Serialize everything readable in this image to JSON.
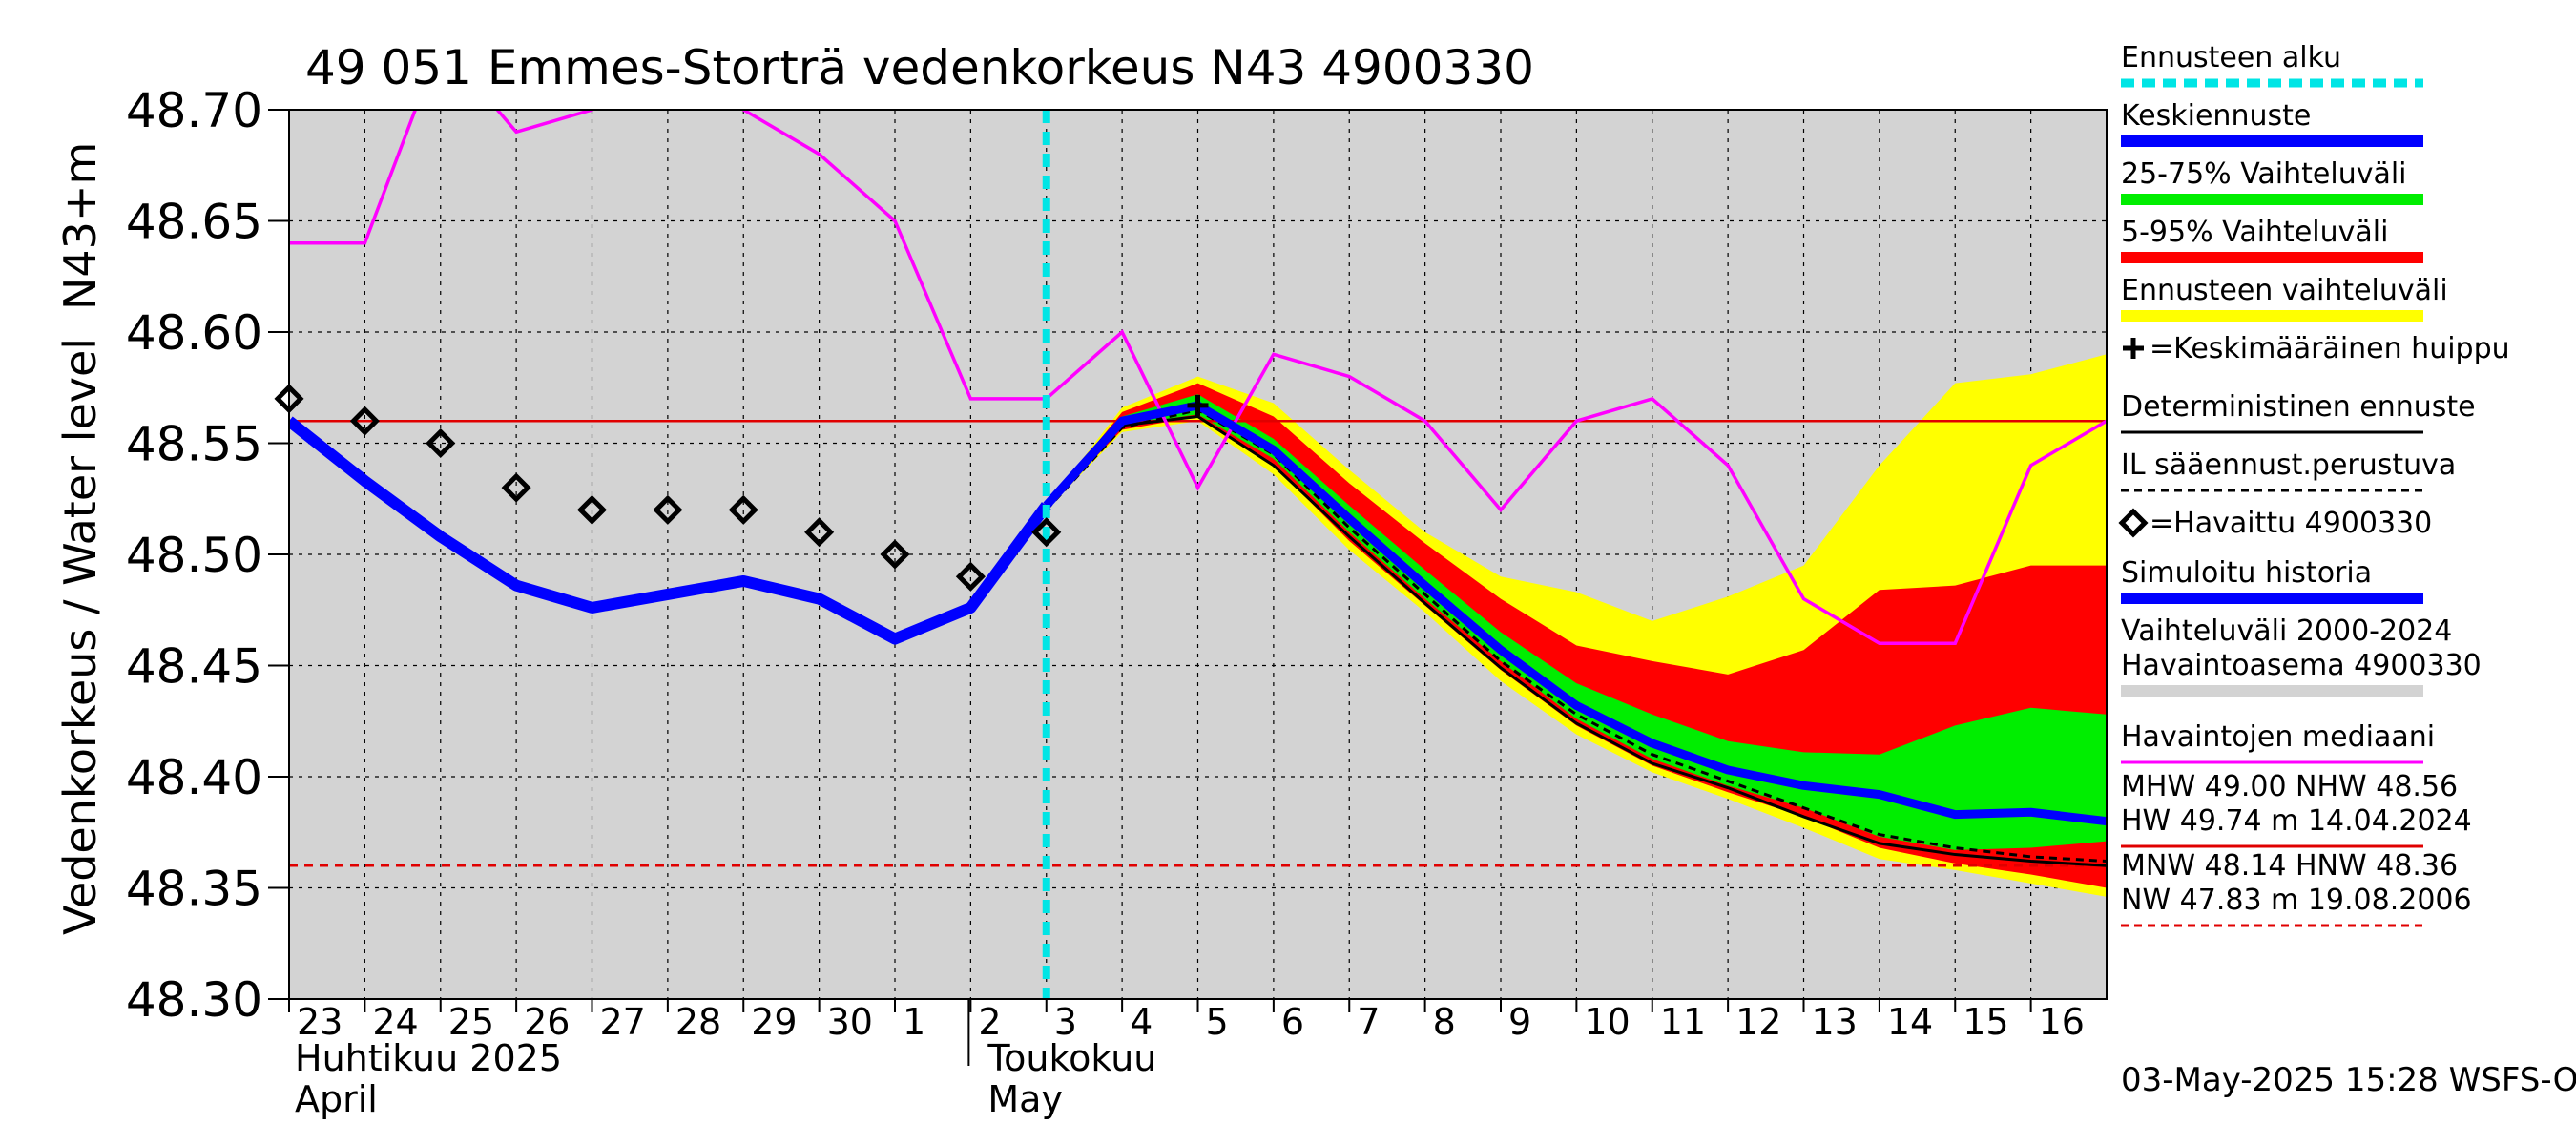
{
  "chart_data": {
    "type": "line",
    "title": "49 051 Emmes-Storträ vedenkorkeus N43 4900330",
    "ylabel": "Vedenkorkeus / Water level",
    "ylabel_unit": "N43+m",
    "ylim": [
      48.3,
      48.7
    ],
    "yticks": [
      "48.30",
      "48.35",
      "48.40",
      "48.45",
      "48.50",
      "48.55",
      "48.60",
      "48.65",
      "48.70"
    ],
    "x_day_range": [
      0,
      24
    ],
    "x_tick_labels": [
      "23",
      "24",
      "25",
      "26",
      "27",
      "28",
      "29",
      "30",
      "1",
      "2",
      "3",
      "4",
      "5",
      "6",
      "7",
      "8",
      "9",
      "10",
      "11",
      "12",
      "13",
      "14",
      "15",
      "16"
    ],
    "month_labels": [
      {
        "fi": "Huhtikuu  2025",
        "en": "April",
        "day": 0
      },
      {
        "fi": "Toukokuu",
        "en": "May",
        "day": 9
      }
    ],
    "forecast_start_day": 10,
    "reference_lines": {
      "nhw": 48.56,
      "hnw": 48.36
    },
    "timestamp": "03-May-2025 15:28 WSFS-O",
    "colors": {
      "forecast_start": "#00e5e5",
      "mean_forecast": "#0000ff",
      "band_25_75": "#00ee00",
      "band_5_95": "#ff0000",
      "band_ensemble": "#ffff00",
      "median": "#ff00ff",
      "historical_range": "#d3d3d3",
      "reference": "#e00000"
    },
    "series": {
      "simulated_history": {
        "name": "Simuloitu historia",
        "x": [
          0,
          1,
          2,
          3,
          4,
          5,
          6,
          7,
          8,
          9,
          10
        ],
        "y": [
          48.56,
          48.533,
          48.508,
          48.486,
          48.476,
          48.482,
          48.488,
          48.48,
          48.462,
          48.476,
          48.522
        ]
      },
      "observed": {
        "name": "=Havaittu 4900330",
        "x": [
          0,
          1,
          2,
          3,
          4,
          5,
          6,
          7,
          8,
          9,
          10
        ],
        "y": [
          48.57,
          48.56,
          48.55,
          48.53,
          48.52,
          48.52,
          48.52,
          48.51,
          48.5,
          48.49,
          48.51
        ]
      },
      "median": {
        "name": "Havaintojen mediaani",
        "x": [
          0,
          1,
          2,
          3,
          4,
          5,
          6,
          7,
          8,
          9,
          10,
          11,
          12,
          13,
          14,
          15,
          16,
          17,
          18,
          19,
          20,
          21,
          22,
          23,
          24
        ],
        "y": [
          48.64,
          48.64,
          48.73,
          48.69,
          48.7,
          48.73,
          48.7,
          48.68,
          48.65,
          48.57,
          48.57,
          48.6,
          48.53,
          48.59,
          48.58,
          48.56,
          48.52,
          48.56,
          48.57,
          48.54,
          48.48,
          48.46,
          48.46,
          48.54,
          48.56
        ]
      },
      "mean_forecast": {
        "name": "Keskiennuste",
        "x": [
          10,
          11,
          12,
          13,
          14,
          15,
          16,
          17,
          18,
          19,
          20,
          21,
          22,
          23,
          24
        ],
        "y": [
          48.522,
          48.56,
          48.567,
          48.547,
          48.516,
          48.486,
          48.457,
          48.432,
          48.415,
          48.403,
          48.396,
          48.392,
          48.383,
          48.384,
          48.38
        ]
      },
      "deterministic": {
        "name": "Deterministinen ennuste",
        "x": [
          10,
          11,
          12,
          13,
          14,
          15,
          16,
          17,
          18,
          19,
          20,
          21,
          22,
          23,
          24
        ],
        "y": [
          48.522,
          48.558,
          48.562,
          48.54,
          48.508,
          48.478,
          48.449,
          48.424,
          48.406,
          48.395,
          48.382,
          48.37,
          48.365,
          48.362,
          48.36
        ]
      },
      "il_forecast": {
        "name": "IL sääennust.perustuva",
        "x": [
          10,
          11,
          12,
          13,
          14,
          15,
          16,
          17,
          18,
          19,
          20,
          21,
          22,
          23,
          24
        ],
        "y": [
          48.52,
          48.557,
          48.565,
          48.545,
          48.512,
          48.482,
          48.452,
          48.428,
          48.41,
          48.398,
          48.386,
          48.374,
          48.368,
          48.364,
          48.362
        ]
      },
      "band_ensemble": {
        "name": "Ennusteen vaihteluväli",
        "x": [
          10,
          11,
          12,
          13,
          14,
          15,
          16,
          17,
          18,
          19,
          20,
          21,
          22,
          23,
          24
        ],
        "upper": [
          48.522,
          48.566,
          48.58,
          48.568,
          48.538,
          48.51,
          48.49,
          48.483,
          48.47,
          48.481,
          48.495,
          48.54,
          48.577,
          48.581,
          48.59
        ],
        "lower": [
          48.52,
          48.555,
          48.56,
          48.536,
          48.502,
          48.474,
          48.443,
          48.419,
          48.402,
          48.39,
          48.377,
          48.363,
          48.358,
          48.352,
          48.346
        ]
      },
      "band_5_95": {
        "name": "5-95% Vaihteluväli",
        "x": [
          10,
          11,
          12,
          13,
          14,
          15,
          16,
          17,
          18,
          19,
          20,
          21,
          22,
          23,
          24
        ],
        "upper": [
          48.522,
          48.564,
          48.577,
          48.562,
          48.532,
          48.505,
          48.48,
          48.459,
          48.452,
          48.446,
          48.457,
          48.484,
          48.486,
          48.495,
          48.495
        ],
        "lower": [
          48.521,
          48.556,
          48.562,
          48.54,
          48.506,
          48.477,
          48.448,
          48.423,
          48.405,
          48.393,
          48.382,
          48.368,
          48.361,
          48.356,
          48.35
        ]
      },
      "band_25_75": {
        "name": "25-75% Vaihteluväli",
        "x": [
          10,
          11,
          12,
          13,
          14,
          15,
          16,
          17,
          18,
          19,
          20,
          21,
          22,
          23,
          24
        ],
        "upper": [
          48.522,
          48.562,
          48.572,
          48.552,
          48.522,
          48.493,
          48.465,
          48.442,
          48.428,
          48.416,
          48.411,
          48.41,
          48.423,
          48.431,
          48.428
        ],
        "lower": [
          48.521,
          48.558,
          48.563,
          48.543,
          48.51,
          48.48,
          48.452,
          48.426,
          48.408,
          48.396,
          48.386,
          48.373,
          48.367,
          48.368,
          48.371
        ]
      },
      "historical_range": {
        "name": "Vaihteluväli 2000-2024",
        "upper": 48.7,
        "lower": 48.3
      }
    },
    "legend": [
      {
        "label": "Ennusteen alku",
        "style": "dashed",
        "color": "#00e5e5"
      },
      {
        "label": "Keskiennuste",
        "style": "thick",
        "color": "#0000ff"
      },
      {
        "label": "25-75% Vaihteluväli",
        "style": "thick",
        "color": "#00ee00"
      },
      {
        "label": "5-95% Vaihteluväli",
        "style": "thick",
        "color": "#ff0000"
      },
      {
        "label": "Ennusteen vaihteluväli",
        "style": "thick",
        "color": "#ffff00"
      },
      {
        "label": "=Keskimääräinen huippu",
        "style": "plus",
        "color": "#000000"
      },
      {
        "label": "Deterministinen ennuste",
        "style": "thin",
        "color": "#000000"
      },
      {
        "label": "IL sääennust.perustuva",
        "style": "dashed-thin",
        "color": "#000000"
      },
      {
        "label": "=Havaittu 4900330",
        "style": "diamond",
        "color": "#000000"
      },
      {
        "label": "Simuloitu historia",
        "style": "thick",
        "color": "#0000ff"
      },
      {
        "label": "Vaihteluväli 2000-2024\n Havaintoasema 4900330",
        "style": "thick",
        "color": "#d3d3d3"
      },
      {
        "label": "Havaintojen mediaani",
        "style": "thin",
        "color": "#ff00ff"
      },
      {
        "label": "MHW  49.00 NHW  48.56\nHW  49.74 m 14.04.2024",
        "style": "thin",
        "color": "#e00000"
      },
      {
        "label": "MNW  48.14 HNW  48.36\nNW  47.83 m 19.08.2006",
        "style": "dashed-thin",
        "color": "#e00000"
      }
    ]
  }
}
